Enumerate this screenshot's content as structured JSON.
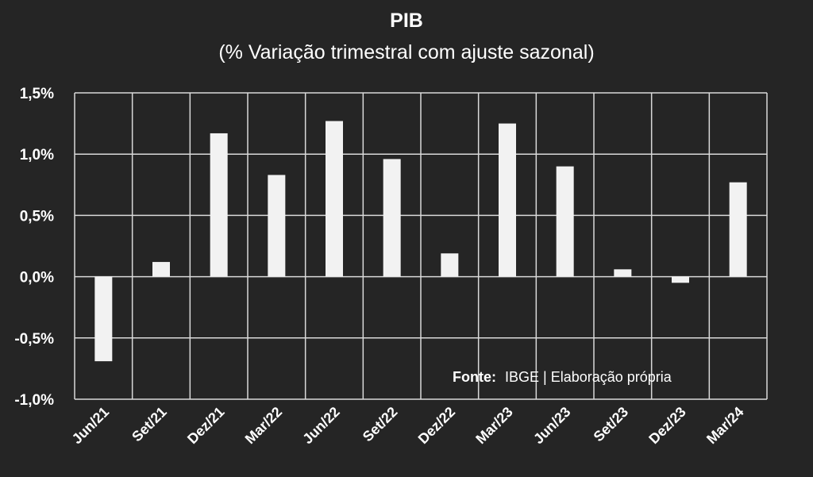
{
  "chart_data": {
    "type": "bar",
    "title": "PIB",
    "subtitle": "(% Variação trimestral com ajuste sazonal)",
    "categories": [
      "Jun/21",
      "Set/21",
      "Dez/21",
      "Mar/22",
      "Jun/22",
      "Set/22",
      "Dez/22",
      "Mar/23",
      "Jun/23",
      "Set/23",
      "Dez/23",
      "Mar/24"
    ],
    "values": [
      -0.69,
      0.12,
      1.17,
      0.83,
      1.27,
      0.96,
      0.19,
      1.25,
      0.9,
      0.06,
      -0.05,
      0.77
    ],
    "ylim": [
      -1.0,
      1.5
    ],
    "yticks": [
      "-1,0%",
      "-0,5%",
      "0,0%",
      "0,5%",
      "1,0%",
      "1,5%"
    ],
    "ytick_values": [
      -1.0,
      -0.5,
      0.0,
      0.5,
      1.0,
      1.5
    ],
    "grid": true,
    "bar_color": "#f2f2f2",
    "grid_color": "#d9d9d9",
    "background_color": "#252525",
    "source_label": "Fonte:",
    "source_text": "IBGE | Elaboração própria"
  }
}
